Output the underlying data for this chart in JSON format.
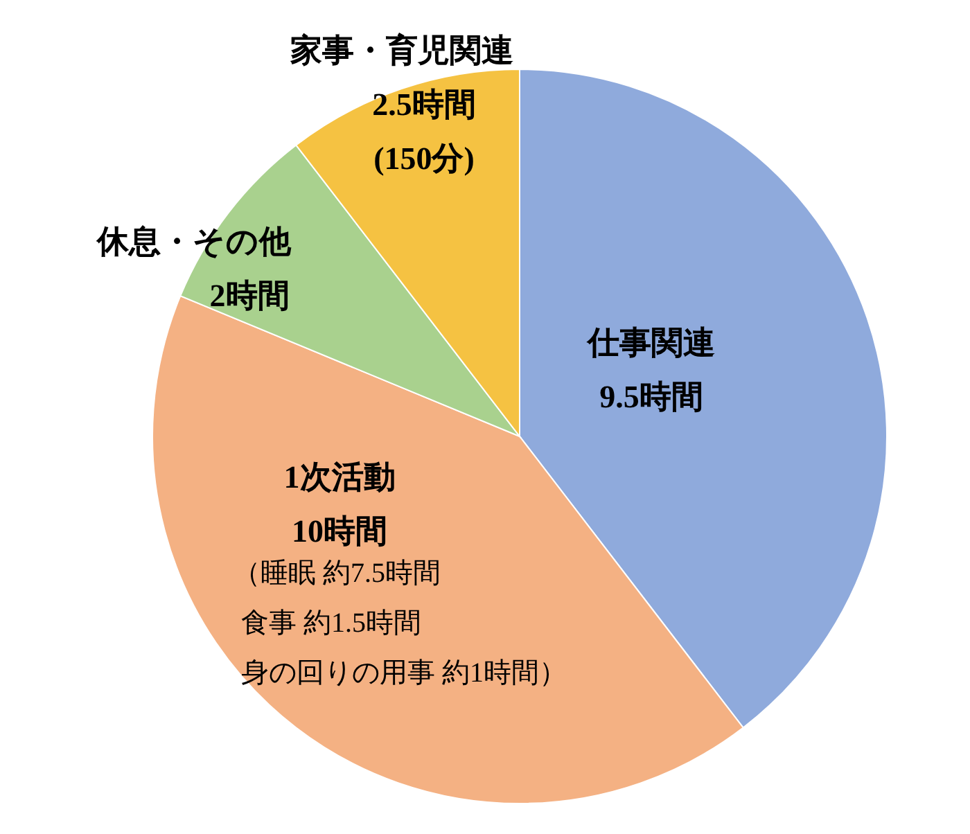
{
  "chart_data": {
    "type": "pie",
    "categories": [
      "仕事関連",
      "1次活動",
      "休息・その他",
      "家事・育児関連"
    ],
    "values": [
      9.5,
      10,
      2,
      2.5
    ],
    "value_labels": [
      "9.5時間",
      "10時間",
      "2時間",
      "2.5時間"
    ],
    "colors": [
      "#8faadc",
      "#f4b183",
      "#a9d18e",
      "#f5c242"
    ],
    "annotations": [
      "(150分)",
      "（睡眠 約7.5時間",
      "食事 約1.5時間",
      "身の回りの用事 約1時間）"
    ]
  }
}
